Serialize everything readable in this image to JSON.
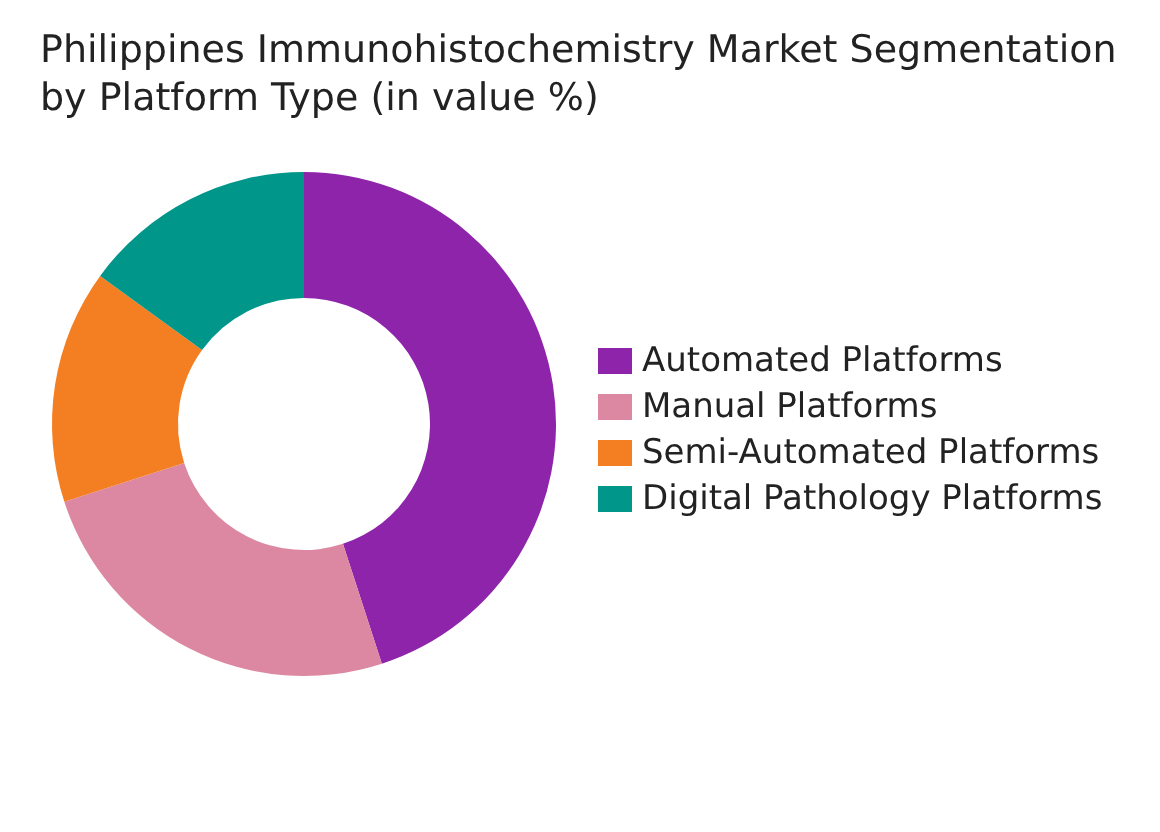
{
  "chart_data": {
    "type": "donut",
    "title": "Philippines Immunohistochemistry Market Segmentation by Platform Type (in value %)",
    "categories": [
      "Automated Platforms",
      "Manual Platforms",
      "Semi-Automated Platforms",
      "Digital Pathology Platforms"
    ],
    "values": [
      45,
      25,
      15,
      15
    ],
    "colors": [
      "#8e24aa",
      "#dc88a2",
      "#f47f22",
      "#00968a"
    ],
    "legend": "right"
  }
}
